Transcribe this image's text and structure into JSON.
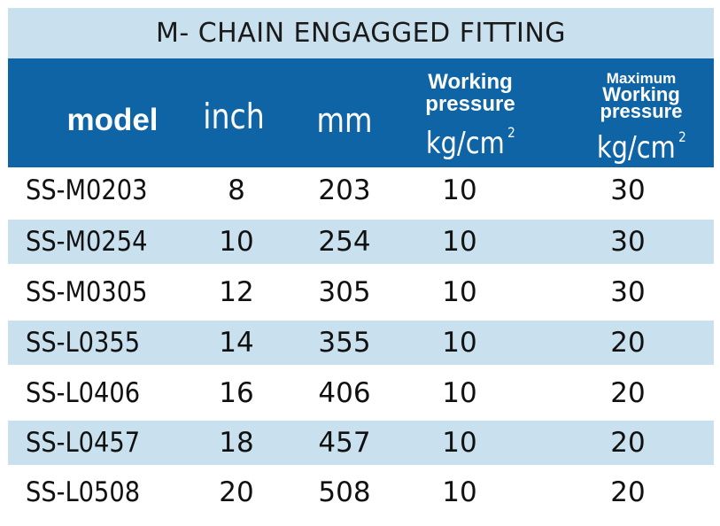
{
  "title": "M- CHAIN ENGAGGED FITTING",
  "header": {
    "model": "model",
    "inch": "inch",
    "mm": "mm",
    "working_pressure": {
      "line1": "Working",
      "line2": "pressure",
      "unit": "kg/cm",
      "sup": "2"
    },
    "max_working_pressure": {
      "line1": "Maximum",
      "line2": "Working",
      "line3": "pressure",
      "unit": "kg/cm",
      "sup": "2"
    }
  },
  "colors": {
    "title_bg": "#c9e1ee",
    "header_bg": "#0f64a6",
    "row_alt_bg": "#c9e1ee"
  },
  "rows": [
    {
      "model": "SS-M0203",
      "inch": "8",
      "mm": "203",
      "wp": "10",
      "mwp": "30"
    },
    {
      "model": "SS-M0254",
      "inch": "10",
      "mm": "254",
      "wp": "10",
      "mwp": "30"
    },
    {
      "model": "SS-M0305",
      "inch": "12",
      "mm": "305",
      "wp": "10",
      "mwp": "30"
    },
    {
      "model": "SS-L0355",
      "inch": "14",
      "mm": "355",
      "wp": "10",
      "mwp": "20"
    },
    {
      "model": "SS-L0406",
      "inch": "16",
      "mm": "406",
      "wp": "10",
      "mwp": "20"
    },
    {
      "model": "SS-L0457",
      "inch": "18",
      "mm": "457",
      "wp": "10",
      "mwp": "20"
    },
    {
      "model": "SS-L0508",
      "inch": "20",
      "mm": "508",
      "wp": "10",
      "mwp": "20"
    }
  ]
}
